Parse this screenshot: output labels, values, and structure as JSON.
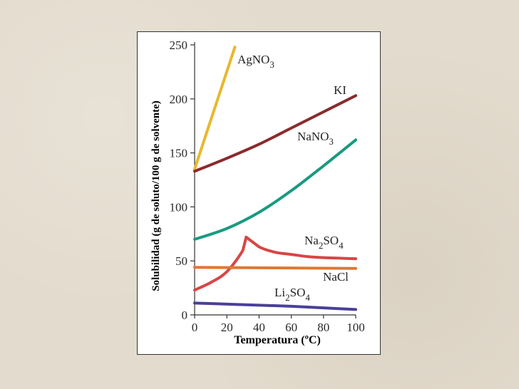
{
  "chart_data": {
    "type": "line",
    "xlabel": "Temperatura (ºC)",
    "ylabel": "Solubilidad (g de soluto/100 g de solvente)",
    "xlim": [
      0,
      100
    ],
    "ylim": [
      0,
      250
    ],
    "xticks": [
      0,
      20,
      40,
      60,
      80,
      100
    ],
    "yticks": [
      0,
      50,
      100,
      150,
      200,
      250
    ],
    "series": [
      {
        "name": "AgNO3",
        "label_main": "AgNO",
        "label_sub": "3",
        "color": "#e8b830",
        "x": [
          0,
          25
        ],
        "y": [
          135,
          248
        ]
      },
      {
        "name": "KI",
        "label_main": "KI",
        "label_sub": "",
        "color": "#8b2a2e",
        "x": [
          0,
          20,
          40,
          60,
          80,
          100
        ],
        "y": [
          133,
          145,
          158,
          173,
          188,
          203
        ]
      },
      {
        "name": "NaNO3",
        "label_main": "NaNO",
        "label_sub": "3",
        "color": "#1a9a80",
        "x": [
          0,
          20,
          40,
          60,
          80,
          100
        ],
        "y": [
          70,
          80,
          95,
          115,
          138,
          162
        ]
      },
      {
        "name": "Na2SO4",
        "label_main": "Na",
        "label_sub": "2",
        "label_main2": "SO",
        "label_sub2": "4",
        "color": "#d94545",
        "x": [
          0,
          10,
          20,
          30,
          32,
          40,
          50,
          60,
          70,
          80,
          90,
          100
        ],
        "y": [
          23,
          30,
          40,
          60,
          72,
          63,
          58,
          56,
          54,
          53,
          52.5,
          52
        ]
      },
      {
        "name": "NaCl",
        "label_main": "NaCl",
        "label_sub": "",
        "color": "#e07830",
        "x": [
          0,
          100
        ],
        "y": [
          44,
          43
        ]
      },
      {
        "name": "Li2SO4",
        "label_main": "Li",
        "label_sub": "2",
        "label_main2": "SO",
        "label_sub2": "4",
        "color": "#4a3f9a",
        "x": [
          0,
          20,
          40,
          60,
          80,
          100
        ],
        "y": [
          11,
          10,
          9,
          8,
          6.5,
          5
        ]
      }
    ]
  }
}
